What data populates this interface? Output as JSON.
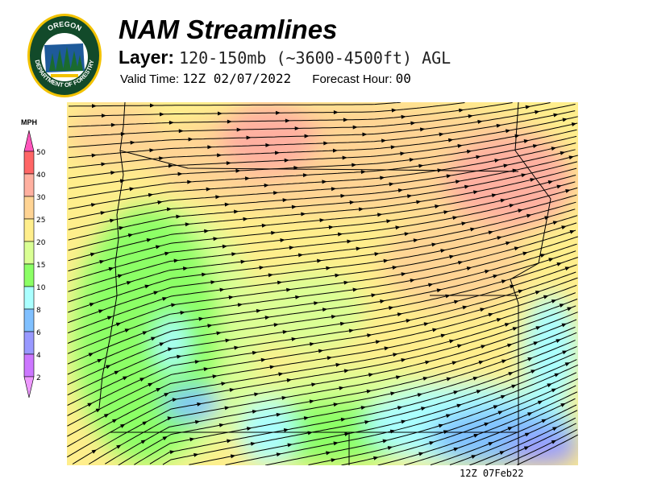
{
  "header": {
    "title": "NAM Streamlines",
    "layer_label": "Layer:",
    "layer_value": "120-150mb (~3600-4500ft) AGL",
    "valid_label": "Valid Time:",
    "valid_value": "12Z 02/07/2022",
    "forecast_label": "Forecast Hour:",
    "forecast_value": "00"
  },
  "logo": {
    "text_top": "OREGON",
    "text_bottom": "DEPARTMENT OF FORESTRY"
  },
  "legend": {
    "units": "MPH",
    "ticks": [
      "50",
      "40",
      "30",
      "25",
      "20",
      "15",
      "10",
      "8",
      "6",
      "4",
      "2"
    ],
    "colors": {
      "above_50": "#ff55bb",
      "40-50": "#ff6666",
      "30-40": "#ffb0a0",
      "25-30": "#ffd494",
      "20-25": "#ffee8c",
      "15-20": "#daff94",
      "10-15": "#8cff66",
      "8-10": "#aaffff",
      "6-8": "#80c0ff",
      "4-6": "#9999ff",
      "2-4": "#cc77ff",
      "below_2": "#ee99ff"
    }
  },
  "footer": {
    "timestamp": "12Z 07Feb22"
  }
}
